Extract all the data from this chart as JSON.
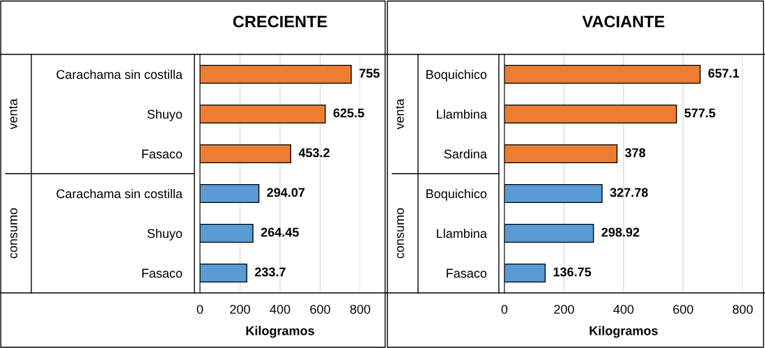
{
  "chart_data": [
    {
      "type": "bar",
      "orientation": "horizontal",
      "title": "CRECIENTE",
      "xlabel": "Kilogramos",
      "categories": [
        "Carachama sin costilla",
        "Shuyo",
        "Fasaco",
        "Carachama sin costilla",
        "Shuyo",
        "Fasaco"
      ],
      "values": [
        755,
        625.5,
        453.2,
        294.07,
        264.45,
        233.7
      ],
      "colors": [
        "#ed7d31",
        "#ed7d31",
        "#ed7d31",
        "#5b9bd5",
        "#5b9bd5",
        "#5b9bd5"
      ],
      "annotations": [
        "venta",
        "consumo"
      ],
      "xlim": [
        0,
        800
      ],
      "xticks": [
        0,
        200,
        400,
        600,
        800
      ],
      "grid": "x",
      "data_labels": true,
      "legend": false
    },
    {
      "type": "bar",
      "orientation": "horizontal",
      "title": "VACIANTE",
      "xlabel": "Kilogramos",
      "categories": [
        "Boquichico",
        "Llambina",
        "Sardina",
        "Boquichico",
        "Llambina",
        "Fasaco"
      ],
      "values": [
        657.1,
        577.5,
        378,
        327.78,
        298.92,
        136.75
      ],
      "colors": [
        "#ed7d31",
        "#ed7d31",
        "#ed7d31",
        "#5b9bd5",
        "#5b9bd5",
        "#5b9bd5"
      ],
      "annotations": [
        "venta",
        "consumo"
      ],
      "xlim": [
        0,
        800
      ],
      "xticks": [
        0,
        200,
        400,
        600,
        800
      ],
      "grid": "x",
      "data_labels": true,
      "legend": false
    }
  ]
}
